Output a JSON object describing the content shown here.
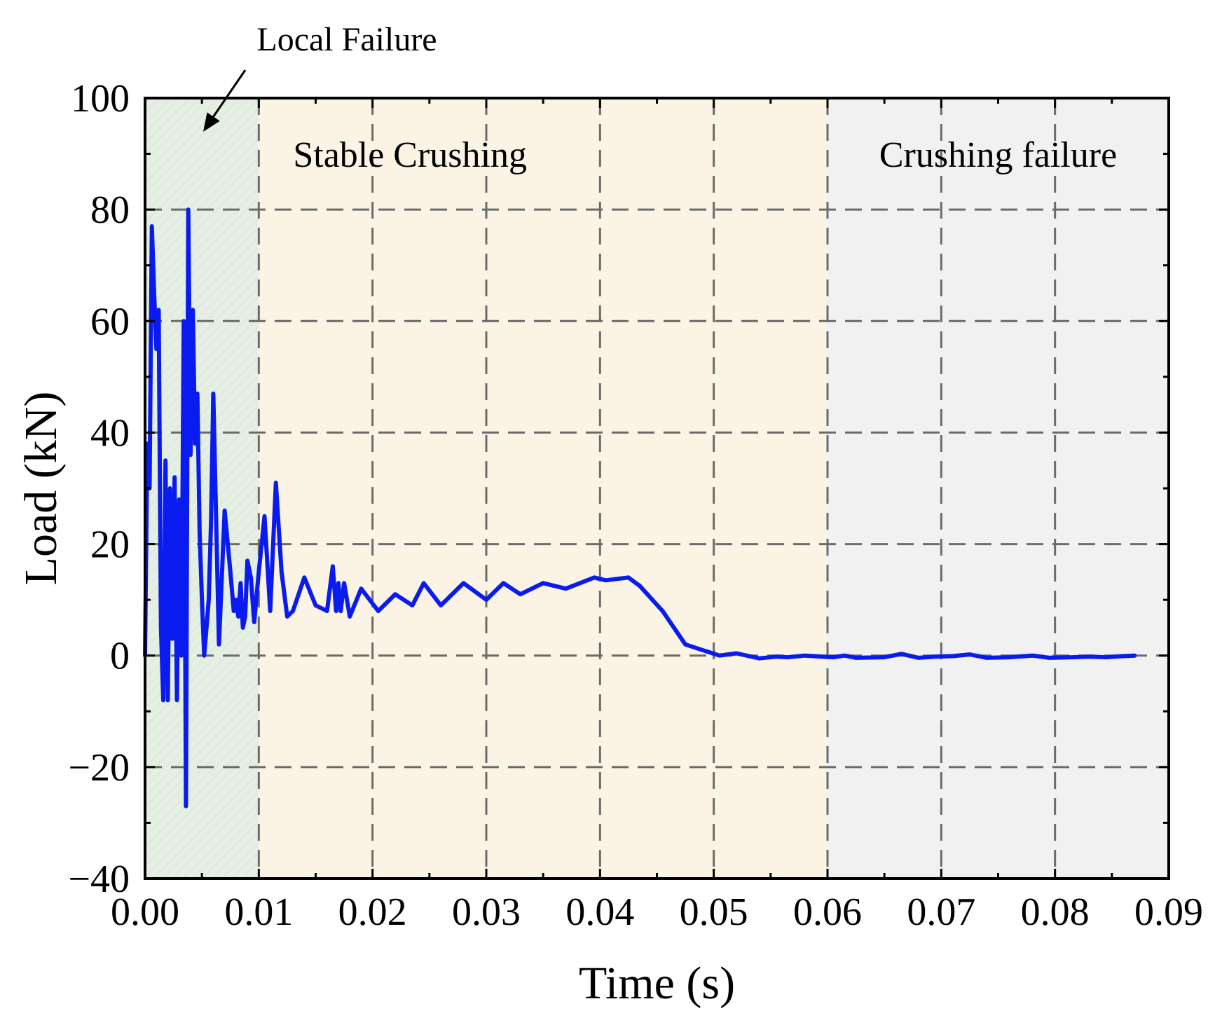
{
  "chart_data": {
    "type": "line",
    "title": "",
    "xlabel": "Time (s)",
    "ylabel": "Load (kN)",
    "xlim": [
      0.0,
      0.09
    ],
    "ylim": [
      -40,
      100
    ],
    "x_ticks": [
      "0.00",
      "0.01",
      "0.02",
      "0.03",
      "0.04",
      "0.05",
      "0.06",
      "0.07",
      "0.08",
      "0.09"
    ],
    "y_ticks": [
      "−40",
      "−20",
      "0",
      "20",
      "40",
      "60",
      "80",
      "100"
    ],
    "grid": true,
    "grid_style": "dashed",
    "legend": "none",
    "series": [
      {
        "color": "#0a1bf0",
        "x": [
          0.0,
          0.0002,
          0.0004,
          0.0006,
          0.0008,
          0.001,
          0.0012,
          0.0014,
          0.0016,
          0.0018,
          0.002,
          0.0022,
          0.0024,
          0.0026,
          0.0028,
          0.003,
          0.0032,
          0.0034,
          0.0036,
          0.0038,
          0.004,
          0.0042,
          0.0044,
          0.0046,
          0.0048,
          0.005,
          0.0052,
          0.0054,
          0.0056,
          0.0058,
          0.006,
          0.0065,
          0.007,
          0.0075,
          0.0078,
          0.008,
          0.0082,
          0.0084,
          0.0086,
          0.0088,
          0.009,
          0.0093,
          0.0096,
          0.01,
          0.0105,
          0.011,
          0.0115,
          0.012,
          0.0125,
          0.013,
          0.014,
          0.015,
          0.016,
          0.0165,
          0.0168,
          0.017,
          0.0172,
          0.0175,
          0.018,
          0.019,
          0.0205,
          0.022,
          0.0235,
          0.0245,
          0.026,
          0.028,
          0.03,
          0.0315,
          0.033,
          0.035,
          0.037,
          0.0395,
          0.0405,
          0.0425,
          0.0435,
          0.0455,
          0.0475,
          0.049,
          0.0505,
          0.052,
          0.054,
          0.0555,
          0.0565,
          0.058,
          0.0595,
          0.0605,
          0.0615,
          0.0625,
          0.065,
          0.0665,
          0.068,
          0.0695,
          0.071,
          0.0725,
          0.074,
          0.076,
          0.078,
          0.0795,
          0.0815,
          0.083,
          0.0845,
          0.086,
          0.087
        ],
        "y": [
          0,
          38,
          30,
          77,
          65,
          55,
          62,
          5,
          -8,
          35,
          -8,
          30,
          3,
          32,
          -8,
          28,
          0,
          60,
          -27,
          80,
          36,
          62,
          38,
          47,
          22,
          10,
          0,
          5,
          10,
          24,
          47,
          2,
          26,
          15,
          8,
          10,
          7,
          13,
          5,
          7,
          17,
          14,
          6,
          15,
          25,
          8,
          31,
          15,
          7,
          8,
          14,
          9,
          8,
          16,
          8,
          13,
          8,
          13,
          7,
          12,
          8,
          11,
          9,
          13,
          9,
          13,
          10,
          13,
          11,
          13,
          12,
          14,
          13.5,
          14,
          12.5,
          8,
          2,
          1,
          0,
          0.4,
          -0.5,
          -0.2,
          -0.3,
          0,
          -0.2,
          -0.3,
          0,
          -0.4,
          -0.3,
          0.3,
          -0.4,
          -0.2,
          -0.1,
          0.2,
          -0.4,
          -0.3,
          0,
          -0.4,
          -0.3,
          -0.2,
          -0.3,
          -0.1,
          0
        ],
        "values_note_unused": null
      }
    ],
    "regions": [
      {
        "label": "Local Failure",
        "x_range": [
          0.0,
          0.01
        ],
        "color": "#e6efe4"
      },
      {
        "label": "Stable Crushing",
        "x_range": [
          0.01,
          0.06
        ],
        "color": "#fbf3e3"
      },
      {
        "label": "Crushing failure",
        "x_range": [
          0.06,
          0.09
        ],
        "color": "#f1f1f1"
      }
    ]
  }
}
